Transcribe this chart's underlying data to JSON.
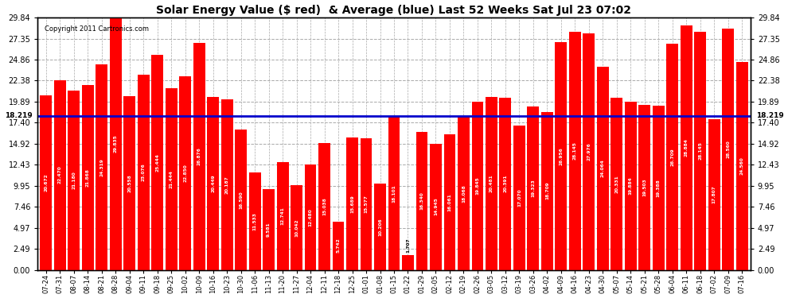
{
  "title": "Solar Energy Value ($ red)  & Average (blue) Last 52 Weeks Sat Jul 23 07:02",
  "copyright": "Copyright 2011 Cartronics.com",
  "average": 18.219,
  "ylim": [
    0,
    29.84
  ],
  "yticks": [
    0.0,
    2.49,
    4.97,
    7.46,
    9.95,
    12.43,
    14.92,
    17.4,
    19.89,
    22.38,
    24.86,
    27.35,
    29.84
  ],
  "bar_color": "#ff0000",
  "avg_line_color": "#0000cc",
  "background_color": "#ffffff",
  "grid_color": "#aaaaaa",
  "categories": [
    "07-24",
    "07-31",
    "08-07",
    "08-14",
    "08-21",
    "08-28",
    "09-04",
    "09-11",
    "09-18",
    "09-25",
    "10-02",
    "10-09",
    "10-16",
    "10-23",
    "10-30",
    "11-06",
    "11-13",
    "11-20",
    "11-27",
    "12-04",
    "12-11",
    "12-18",
    "12-25",
    "01-01",
    "01-08",
    "01-15",
    "01-22",
    "01-29",
    "02-05",
    "02-12",
    "02-19",
    "02-26",
    "03-05",
    "03-12",
    "03-19",
    "03-26",
    "04-02",
    "04-09",
    "04-16",
    "04-23",
    "04-30",
    "05-07",
    "05-14",
    "05-21",
    "05-28",
    "06-04",
    "06-11",
    "06-18",
    "07-02",
    "07-09",
    "07-16"
  ],
  "values": [
    20.672,
    22.47,
    21.18,
    21.868,
    24.319,
    29.835,
    20.558,
    23.076,
    25.444,
    21.444,
    22.85,
    26.876,
    20.449,
    20.187,
    16.59,
    11.533,
    9.581,
    12.741,
    10.042,
    12.48,
    15.038,
    5.742,
    15.689,
    15.577,
    10.206,
    18.101,
    1.707,
    16.34,
    14.945,
    16.061,
    18.068,
    19.845,
    20.481,
    20.391,
    17.07,
    19.323,
    18.709,
    26.956,
    28.145,
    27.976,
    24.064,
    20.331,
    19.884,
    19.503,
    19.388,
    26.709,
    28.884,
    28.145,
    17.807,
    28.56,
    24.56
  ]
}
